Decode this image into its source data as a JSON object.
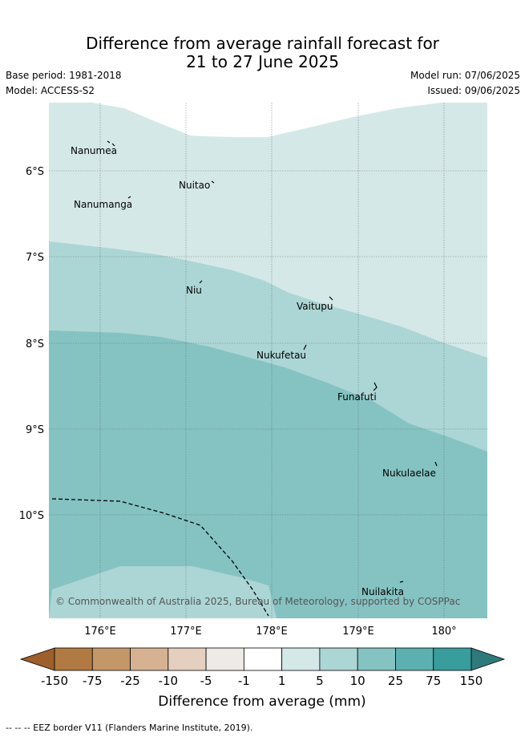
{
  "header": {
    "title_line1": "Difference from average rainfall forecast for",
    "title_line2": "21 to 27 June 2025",
    "base_period": "Base period: 1981-2018",
    "model": "Model: ACCESS-S2",
    "model_run": "Model run: 07/06/2025",
    "issued": "Issued: 09/06/2025"
  },
  "map": {
    "lat_labels": [
      "6°S",
      "7°S",
      "8°S",
      "9°S",
      "10°S"
    ],
    "lon_labels": [
      "176°E",
      "177°E",
      "178°E",
      "179°E",
      "180°"
    ],
    "places": [
      {
        "name": "Nanumea"
      },
      {
        "name": "Nuitao"
      },
      {
        "name": "Nanumanga"
      },
      {
        "name": "Niu"
      },
      {
        "name": "Vaitupu"
      },
      {
        "name": "Nukufetau"
      },
      {
        "name": "Funafuti"
      },
      {
        "name": "Nukulaelae"
      },
      {
        "name": "Nuilakita"
      }
    ],
    "copyright": "© Commonwealth of Australia 2025, Bureau of Meteorology, supported by COSPPac",
    "zone_colors": {
      "1_to_5": "#d5e8e8",
      "5_to_10": "#acd6d5",
      "10_to_25": "#85c3c2"
    }
  },
  "legend": {
    "ticks": [
      "-150",
      "-75",
      "-25",
      "-10",
      "-5",
      "-1",
      "1",
      "5",
      "10",
      "25",
      "75",
      "150"
    ],
    "colors": [
      "#9d5f2b",
      "#b07a42",
      "#c49769",
      "#d6b292",
      "#e5d0bf",
      "#eeeae6",
      "#ffffff",
      "#d5e8e8",
      "#acd6d5",
      "#85c3c2",
      "#5cb0af",
      "#389d9c",
      "#2e7a7b"
    ],
    "label": "Difference from average (mm)"
  },
  "footer": {
    "eez_note": "-- -- -- EEZ border V11 (Flanders Marine Institute, 2019)."
  }
}
